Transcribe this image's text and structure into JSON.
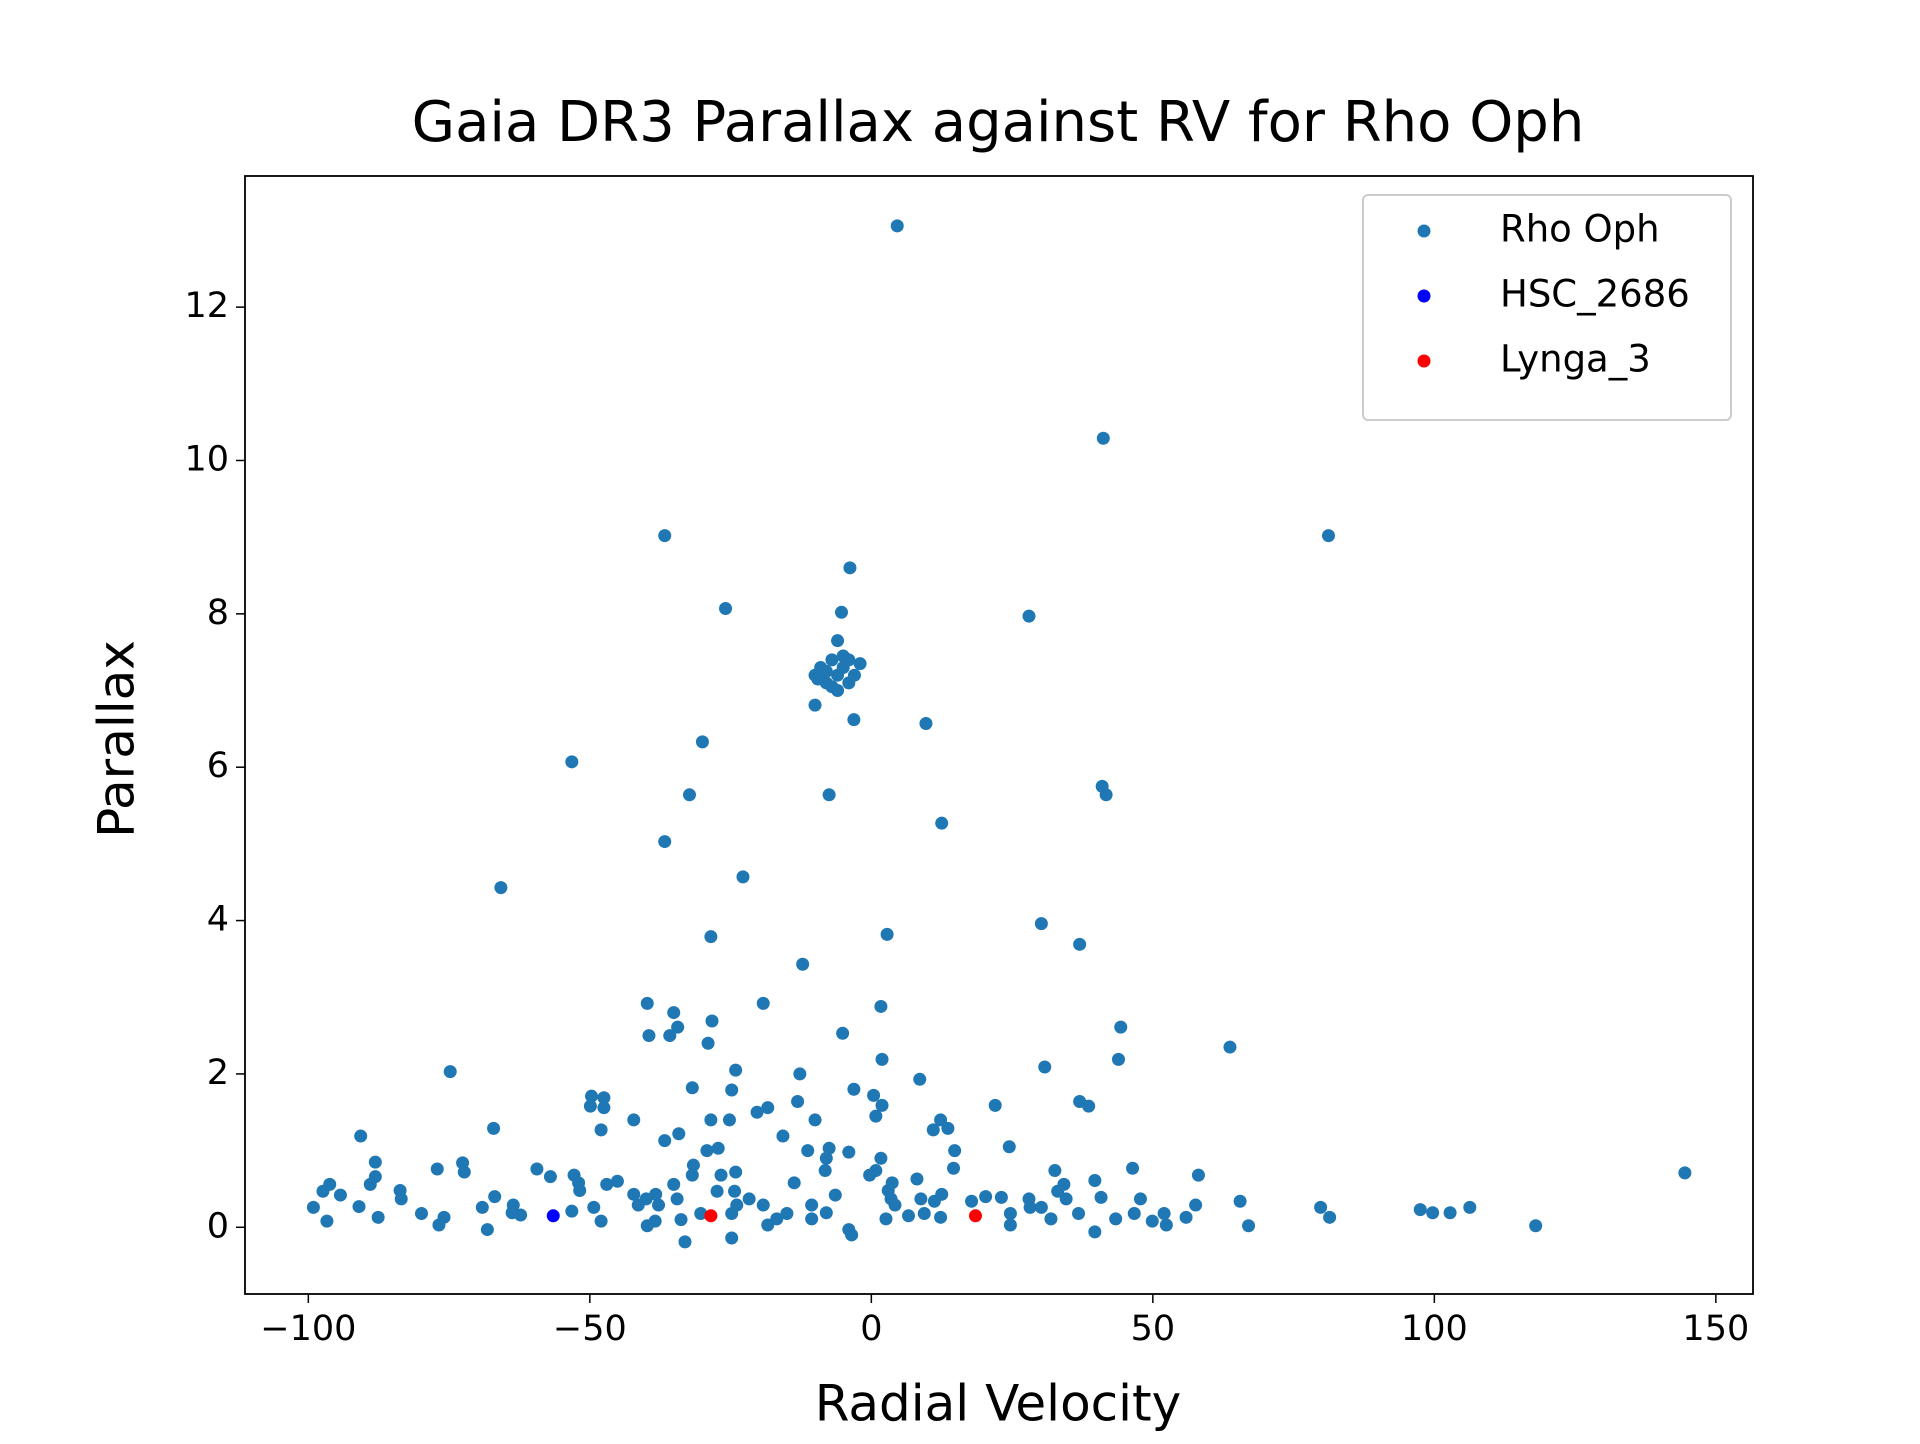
{
  "chart_data": {
    "type": "scatter",
    "title": "Gaia DR3 Parallax against RV for Rho Oph",
    "x_label": "Radial Velocity",
    "y_label": "Parallax",
    "xlim": [
      -111.25,
      156.6
    ],
    "ylim": [
      -0.87,
      13.71
    ],
    "xticks": [
      {
        "value": -100,
        "label": "−100"
      },
      {
        "value": -50,
        "label": "−50"
      },
      0,
      50,
      100,
      150
    ],
    "yticks": [
      0,
      2,
      4,
      6,
      8,
      10,
      12
    ],
    "legend": "upper right",
    "series": [
      {
        "name": "Rho Oph",
        "color": "#1f77b4",
        "x": [
          4.6,
          41.2,
          81.2,
          -36.7,
          -3.8,
          -25.9,
          28.0,
          -5.3,
          -10,
          -9,
          -8,
          -7,
          -6,
          -5,
          -4,
          -3,
          -2,
          -7,
          -5,
          -6,
          -8,
          -4,
          -6,
          -9.5,
          -10,
          -3.1,
          9.7,
          -30,
          -53.2,
          -32.3,
          -7.5,
          41,
          41.7,
          12.5,
          -36.7,
          -65.8,
          -22.8,
          -28.5,
          2.8,
          30.2,
          37,
          -12.2,
          -39.8,
          -19.2,
          1.7,
          -35.1,
          -34.4,
          -39.5,
          -35.8,
          -28.3,
          -5.1,
          44.3,
          -29,
          63.7,
          -74.8,
          -24.1,
          1.9,
          43.9,
          -12.7,
          30.8,
          -31.8,
          -24.8,
          8.6,
          -3.1,
          -49.7,
          -47.5,
          -13.1,
          37,
          38.6,
          22,
          0.4,
          1.9,
          -49.9,
          -47.5,
          -18.4,
          -20.3,
          -42.2,
          -28.5,
          -25.2,
          -10,
          0.8,
          12.3,
          -48,
          -67.1,
          13.6,
          11,
          -34.2,
          -15.7,
          -90.7,
          -36.7,
          24.5,
          14.8,
          -11.3,
          -4,
          -7.5,
          -29.2,
          -27.2,
          -88.1,
          -72.6,
          1.7,
          -8,
          -31.6,
          -59.4,
          -77.1,
          -72.3,
          14.6,
          46.4,
          0.8,
          -8.2,
          32.6,
          144.5,
          -24.1,
          -26.7,
          -57,
          -52.8,
          -31.8,
          -0.3,
          8.1,
          58.1,
          -88.1,
          -52,
          -89,
          -96.2,
          -45.1,
          -47,
          3.7,
          -13.7,
          39.7,
          -35.1,
          34.2,
          -83.7,
          -97.4,
          -94.3,
          -51.8,
          -42.2,
          -38.3,
          -6.4,
          33.1,
          3.0,
          12.5,
          20.3,
          23.1,
          -83.5,
          -66.9,
          -40,
          -34.5,
          8.8,
          3.5,
          28,
          40.8,
          47.8,
          34.6,
          -21.7,
          11.2,
          65.5,
          17.8,
          -41.4,
          -91,
          -99.1,
          -69.1,
          -63.6,
          -49.3,
          -37.8,
          -23.9,
          57.6,
          79.8,
          106.3,
          97.5,
          99.7,
          102.8,
          -10.6,
          4.2,
          28.2,
          30.2,
          -19.2,
          -53.2,
          -63.8,
          -30.3,
          -24.8,
          -8,
          9.4,
          24.7,
          36.8,
          46.7,
          52,
          -79.9,
          -15,
          -87.6,
          -75.9,
          2.6,
          43.4,
          31.9,
          81.4,
          12.3,
          -10.6,
          -33.8,
          -38.4,
          -96.7,
          -48,
          6.6,
          -16.8,
          49.9,
          55.9,
          -76.8,
          -39.8,
          -18.4,
          24.7,
          52.4,
          67,
          118,
          -68.2,
          39.7,
          -4,
          -3.5,
          -24.8,
          -33.1,
          -62.3,
          -24.3,
          -27.4
        ],
        "y": [
          13.06,
          10.29,
          9.02,
          9.02,
          8.6,
          8.07,
          7.97,
          8.02,
          7.2,
          7.3,
          7.1,
          7.4,
          7.2,
          7.3,
          7.1,
          7.2,
          7.35,
          7.05,
          7.45,
          7.65,
          7.25,
          7.4,
          7.0,
          7.15,
          6.81,
          6.62,
          6.57,
          6.33,
          6.07,
          5.64,
          5.64,
          5.75,
          5.64,
          5.27,
          5.03,
          4.43,
          4.57,
          3.79,
          3.82,
          3.96,
          3.69,
          3.43,
          2.92,
          2.92,
          2.88,
          2.8,
          2.61,
          2.5,
          2.5,
          2.69,
          2.53,
          2.61,
          2.4,
          2.35,
          2.03,
          2.05,
          2.19,
          2.19,
          2.0,
          2.09,
          1.82,
          1.79,
          1.93,
          1.8,
          1.71,
          1.69,
          1.64,
          1.64,
          1.58,
          1.59,
          1.72,
          1.59,
          1.58,
          1.56,
          1.56,
          1.5,
          1.4,
          1.4,
          1.4,
          1.4,
          1.45,
          1.4,
          1.27,
          1.29,
          1.29,
          1.27,
          1.22,
          1.19,
          1.19,
          1.13,
          1.05,
          1.0,
          1.0,
          0.98,
          1.03,
          1.0,
          1.03,
          0.85,
          0.84,
          0.9,
          0.9,
          0.81,
          0.76,
          0.76,
          0.72,
          0.77,
          0.77,
          0.74,
          0.74,
          0.74,
          0.71,
          0.72,
          0.68,
          0.66,
          0.68,
          0.68,
          0.68,
          0.63,
          0.68,
          0.66,
          0.58,
          0.56,
          0.56,
          0.6,
          0.56,
          0.58,
          0.58,
          0.61,
          0.56,
          0.56,
          0.48,
          0.47,
          0.42,
          0.48,
          0.43,
          0.43,
          0.42,
          0.47,
          0.48,
          0.43,
          0.4,
          0.39,
          0.37,
          0.4,
          0.37,
          0.37,
          0.37,
          0.37,
          0.37,
          0.39,
          0.37,
          0.37,
          0.37,
          0.34,
          0.34,
          0.34,
          0.29,
          0.27,
          0.26,
          0.26,
          0.29,
          0.26,
          0.29,
          0.29,
          0.29,
          0.26,
          0.26,
          0.23,
          0.19,
          0.19,
          0.29,
          0.29,
          0.26,
          0.26,
          0.29,
          0.21,
          0.19,
          0.18,
          0.18,
          0.19,
          0.18,
          0.18,
          0.18,
          0.18,
          0.18,
          0.18,
          0.18,
          0.13,
          0.13,
          0.11,
          0.11,
          0.11,
          0.13,
          0.13,
          0.11,
          0.1,
          0.08,
          0.08,
          0.08,
          0.15,
          0.11,
          0.08,
          0.13,
          0.03,
          0.02,
          0.03,
          0.03,
          0.03,
          0.02,
          0.02,
          -0.03,
          -0.06,
          -0.03,
          -0.1,
          -0.14,
          -0.19,
          0.16,
          0.47,
          0.47
        ]
      },
      {
        "name": "HSC_2686",
        "color": "#0000ff",
        "x": [
          -56.5
        ],
        "y": [
          0.15
        ]
      },
      {
        "name": "Lynga_3",
        "color": "#ff0000",
        "x": [
          -28.5,
          18.5
        ],
        "y": [
          0.15,
          0.15
        ]
      }
    ]
  }
}
